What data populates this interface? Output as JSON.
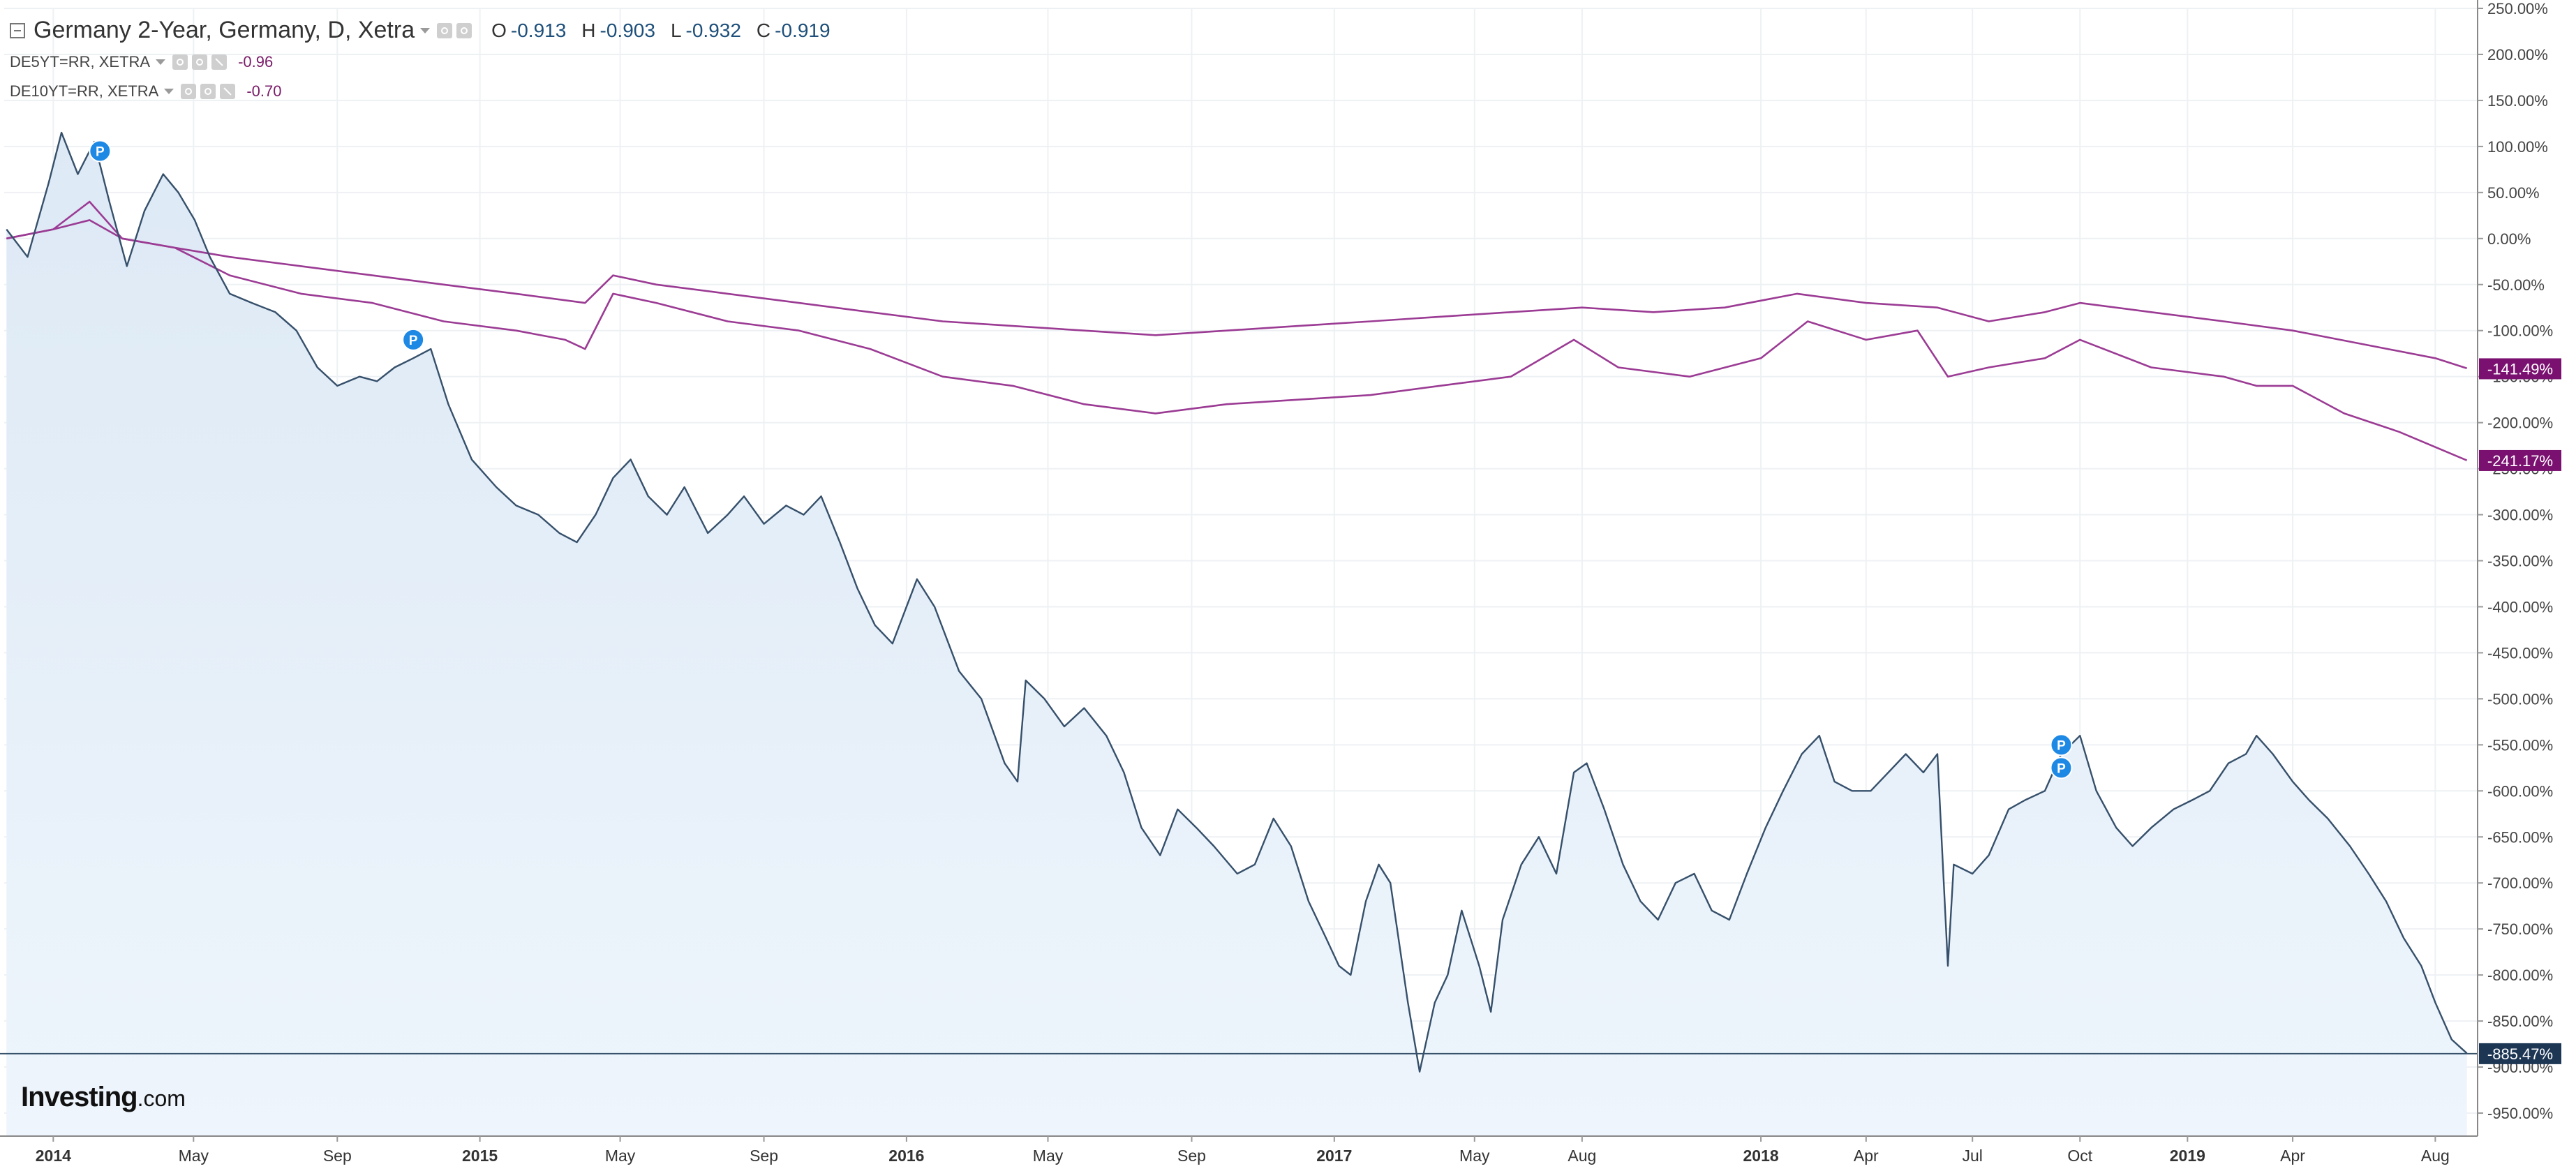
{
  "legend": {
    "main": {
      "title": "Germany 2-Year, Germany, D, Xetra",
      "open_label": "O",
      "open": "-0.913",
      "high_label": "H",
      "high": "-0.903",
      "low_label": "L",
      "low": "-0.932",
      "close_label": "C",
      "close": "-0.919"
    },
    "series_5y": {
      "title": "DE5YT=RR, XETRA",
      "value": "-0.96"
    },
    "series_10y": {
      "title": "DE10YT=RR, XETRA",
      "value": "-0.70"
    }
  },
  "logo": {
    "main": "Investing",
    "suffix": ".com"
  },
  "colors": {
    "main_line": "#36506b",
    "main_fill": "#dde9f5",
    "purple": "#9b3b94",
    "badge_main": "#1c3654",
    "badge_purple": "#7a1070",
    "marker": "#1e88e5",
    "grid": "#eef1f4"
  },
  "marker_glyph": "P",
  "chart_data": {
    "type": "line",
    "title": "Germany 2-Year, Germany, D, Xetra",
    "ylabel": "",
    "xlabel": "",
    "ylim": [
      -975,
      250
    ],
    "xlim": [
      "2013-11-20",
      "2019-09-05"
    ],
    "yticks": [
      "250.00%",
      "200.00%",
      "150.00%",
      "100.00%",
      "50.00%",
      "0.00%",
      "-50.00%",
      "-100.00%",
      "-150.00%",
      "-200.00%",
      "-250.00%",
      "-300.00%",
      "-350.00%",
      "-400.00%",
      "-450.00%",
      "-500.00%",
      "-550.00%",
      "-600.00%",
      "-650.00%",
      "-700.00%",
      "-750.00%",
      "-800.00%",
      "-850.00%",
      "-900.00%",
      "-950.00%"
    ],
    "ytick_values": [
      250,
      200,
      150,
      100,
      50,
      0,
      -50,
      -100,
      -150,
      -200,
      -250,
      -300,
      -350,
      -400,
      -450,
      -500,
      -550,
      -600,
      -650,
      -700,
      -750,
      -800,
      -850,
      -900,
      -950
    ],
    "xticks": [
      {
        "label": "2014",
        "date": "2014-01-01",
        "bold": true
      },
      {
        "label": "May",
        "date": "2014-05-01"
      },
      {
        "label": "Sep",
        "date": "2014-09-01"
      },
      {
        "label": "2015",
        "date": "2015-01-01",
        "bold": true
      },
      {
        "label": "May",
        "date": "2015-05-01"
      },
      {
        "label": "Sep",
        "date": "2015-09-01"
      },
      {
        "label": "2016",
        "date": "2016-01-01",
        "bold": true
      },
      {
        "label": "May",
        "date": "2016-05-01"
      },
      {
        "label": "Sep",
        "date": "2016-09-01"
      },
      {
        "label": "2017",
        "date": "2017-01-01",
        "bold": true
      },
      {
        "label": "May",
        "date": "2017-05-01"
      },
      {
        "label": "Aug",
        "date": "2017-08-01"
      },
      {
        "label": "2018",
        "date": "2018-01-01",
        "bold": true
      },
      {
        "label": "Apr",
        "date": "2018-04-01"
      },
      {
        "label": "Jul",
        "date": "2018-07-01"
      },
      {
        "label": "Oct",
        "date": "2018-10-01"
      },
      {
        "label": "2019",
        "date": "2019-01-01",
        "bold": true
      },
      {
        "label": "Apr",
        "date": "2019-04-01"
      },
      {
        "label": "Aug",
        "date": "2019-08-01"
      }
    ],
    "series": [
      {
        "name": "Germany 2-Year",
        "style": "area",
        "last_label": "-885.47%",
        "last_value": -885.47,
        "points": [
          [
            "2013-11-22",
            10
          ],
          [
            "2013-12-10",
            -20
          ],
          [
            "2013-12-28",
            60
          ],
          [
            "2014-01-08",
            115
          ],
          [
            "2014-01-22",
            70
          ],
          [
            "2014-02-05",
            105
          ],
          [
            "2014-02-18",
            40
          ],
          [
            "2014-03-05",
            -30
          ],
          [
            "2014-03-20",
            30
          ],
          [
            "2014-04-05",
            70
          ],
          [
            "2014-04-18",
            50
          ],
          [
            "2014-05-02",
            20
          ],
          [
            "2014-05-15",
            -20
          ],
          [
            "2014-06-01",
            -60
          ],
          [
            "2014-06-20",
            -70
          ],
          [
            "2014-07-10",
            -80
          ],
          [
            "2014-07-28",
            -100
          ],
          [
            "2014-08-15",
            -140
          ],
          [
            "2014-09-01",
            -160
          ],
          [
            "2014-09-20",
            -150
          ],
          [
            "2014-10-05",
            -155
          ],
          [
            "2014-10-20",
            -140
          ],
          [
            "2014-11-05",
            -130
          ],
          [
            "2014-11-20",
            -120
          ],
          [
            "2014-12-05",
            -180
          ],
          [
            "2014-12-25",
            -240
          ],
          [
            "2015-01-15",
            -270
          ],
          [
            "2015-02-01",
            -290
          ],
          [
            "2015-02-20",
            -300
          ],
          [
            "2015-03-10",
            -320
          ],
          [
            "2015-03-25",
            -330
          ],
          [
            "2015-04-10",
            -300
          ],
          [
            "2015-04-25",
            -260
          ],
          [
            "2015-05-10",
            -240
          ],
          [
            "2015-05-25",
            -280
          ],
          [
            "2015-06-10",
            -300
          ],
          [
            "2015-06-25",
            -270
          ],
          [
            "2015-07-15",
            -320
          ],
          [
            "2015-08-01",
            -300
          ],
          [
            "2015-08-15",
            -280
          ],
          [
            "2015-09-01",
            -310
          ],
          [
            "2015-09-20",
            -290
          ],
          [
            "2015-10-05",
            -300
          ],
          [
            "2015-10-20",
            -280
          ],
          [
            "2015-11-05",
            -330
          ],
          [
            "2015-11-20",
            -380
          ],
          [
            "2015-12-05",
            -420
          ],
          [
            "2015-12-20",
            -440
          ],
          [
            "2016-01-10",
            -370
          ],
          [
            "2016-01-25",
            -400
          ],
          [
            "2016-02-15",
            -470
          ],
          [
            "2016-03-05",
            -500
          ],
          [
            "2016-03-25",
            -570
          ],
          [
            "2016-04-05",
            -590
          ],
          [
            "2016-04-12",
            -480
          ],
          [
            "2016-04-28",
            -500
          ],
          [
            "2016-05-15",
            -530
          ],
          [
            "2016-06-01",
            -510
          ],
          [
            "2016-06-20",
            -540
          ],
          [
            "2016-07-05",
            -580
          ],
          [
            "2016-07-20",
            -640
          ],
          [
            "2016-08-05",
            -670
          ],
          [
            "2016-08-20",
            -620
          ],
          [
            "2016-09-05",
            -640
          ],
          [
            "2016-09-20",
            -660
          ],
          [
            "2016-10-10",
            -690
          ],
          [
            "2016-10-25",
            -680
          ],
          [
            "2016-11-10",
            -630
          ],
          [
            "2016-11-25",
            -660
          ],
          [
            "2016-12-10",
            -720
          ],
          [
            "2016-12-25",
            -760
          ],
          [
            "2017-01-05",
            -790
          ],
          [
            "2017-01-15",
            -800
          ],
          [
            "2017-01-28",
            -720
          ],
          [
            "2017-02-08",
            -680
          ],
          [
            "2017-02-18",
            -700
          ],
          [
            "2017-03-05",
            -830
          ],
          [
            "2017-03-15",
            -905
          ],
          [
            "2017-03-28",
            -830
          ],
          [
            "2017-04-08",
            -800
          ],
          [
            "2017-04-20",
            -730
          ],
          [
            "2017-05-05",
            -790
          ],
          [
            "2017-05-15",
            -840
          ],
          [
            "2017-05-25",
            -740
          ],
          [
            "2017-06-10",
            -680
          ],
          [
            "2017-06-25",
            -650
          ],
          [
            "2017-07-10",
            -690
          ],
          [
            "2017-07-25",
            -580
          ],
          [
            "2017-08-05",
            -570
          ],
          [
            "2017-08-20",
            -620
          ],
          [
            "2017-09-05",
            -680
          ],
          [
            "2017-09-20",
            -720
          ],
          [
            "2017-10-05",
            -740
          ],
          [
            "2017-10-20",
            -700
          ],
          [
            "2017-11-05",
            -690
          ],
          [
            "2017-11-20",
            -730
          ],
          [
            "2017-12-05",
            -740
          ],
          [
            "2017-12-20",
            -690
          ],
          [
            "2018-01-05",
            -640
          ],
          [
            "2018-01-20",
            -600
          ],
          [
            "2018-02-05",
            -560
          ],
          [
            "2018-02-20",
            -540
          ],
          [
            "2018-03-05",
            -590
          ],
          [
            "2018-03-20",
            -600
          ],
          [
            "2018-04-05",
            -600
          ],
          [
            "2018-04-20",
            -580
          ],
          [
            "2018-05-05",
            -560
          ],
          [
            "2018-05-20",
            -580
          ],
          [
            "2018-06-01",
            -560
          ],
          [
            "2018-06-10",
            -790
          ],
          [
            "2018-06-15",
            -680
          ],
          [
            "2018-07-01",
            -690
          ],
          [
            "2018-07-15",
            -670
          ],
          [
            "2018-08-01",
            -620
          ],
          [
            "2018-08-15",
            -610
          ],
          [
            "2018-09-01",
            -600
          ],
          [
            "2018-09-15",
            -560
          ],
          [
            "2018-10-01",
            -540
          ],
          [
            "2018-10-15",
            -600
          ],
          [
            "2018-11-01",
            -640
          ],
          [
            "2018-11-15",
            -660
          ],
          [
            "2018-12-01",
            -640
          ],
          [
            "2018-12-20",
            -620
          ],
          [
            "2019-01-05",
            -610
          ],
          [
            "2019-01-20",
            -600
          ],
          [
            "2019-02-05",
            -570
          ],
          [
            "2019-02-20",
            -560
          ],
          [
            "2019-03-01",
            -540
          ],
          [
            "2019-03-15",
            -560
          ],
          [
            "2019-04-01",
            -590
          ],
          [
            "2019-04-15",
            -610
          ],
          [
            "2019-05-01",
            -630
          ],
          [
            "2019-05-20",
            -660
          ],
          [
            "2019-06-05",
            -690
          ],
          [
            "2019-06-20",
            -720
          ],
          [
            "2019-07-05",
            -760
          ],
          [
            "2019-07-20",
            -790
          ],
          [
            "2019-08-01",
            -830
          ],
          [
            "2019-08-15",
            -870
          ],
          [
            "2019-08-28",
            -885
          ]
        ]
      },
      {
        "name": "DE5YT=RR, XETRA",
        "style": "line",
        "last_label": "-241.17%",
        "last_value": -241.17,
        "points": [
          [
            "2013-11-22",
            0
          ],
          [
            "2014-01-01",
            10
          ],
          [
            "2014-02-01",
            20
          ],
          [
            "2014-03-01",
            0
          ],
          [
            "2014-04-15",
            -10
          ],
          [
            "2014-06-01",
            -40
          ],
          [
            "2014-08-01",
            -60
          ],
          [
            "2014-10-01",
            -70
          ],
          [
            "2014-12-01",
            -90
          ],
          [
            "2015-02-01",
            -100
          ],
          [
            "2015-03-15",
            -110
          ],
          [
            "2015-04-01",
            -120
          ],
          [
            "2015-04-25",
            -60
          ],
          [
            "2015-06-01",
            -70
          ],
          [
            "2015-08-01",
            -90
          ],
          [
            "2015-10-01",
            -100
          ],
          [
            "2015-12-01",
            -120
          ],
          [
            "2016-02-01",
            -150
          ],
          [
            "2016-04-01",
            -160
          ],
          [
            "2016-06-01",
            -180
          ],
          [
            "2016-08-01",
            -190
          ],
          [
            "2016-10-01",
            -180
          ],
          [
            "2016-12-01",
            -175
          ],
          [
            "2017-02-01",
            -170
          ],
          [
            "2017-04-01",
            -160
          ],
          [
            "2017-06-01",
            -150
          ],
          [
            "2017-07-25",
            -110
          ],
          [
            "2017-09-01",
            -140
          ],
          [
            "2017-11-01",
            -150
          ],
          [
            "2018-01-01",
            -130
          ],
          [
            "2018-02-10",
            -90
          ],
          [
            "2018-04-01",
            -110
          ],
          [
            "2018-05-15",
            -100
          ],
          [
            "2018-06-10",
            -150
          ],
          [
            "2018-07-15",
            -140
          ],
          [
            "2018-09-01",
            -130
          ],
          [
            "2018-10-01",
            -110
          ],
          [
            "2018-12-01",
            -140
          ],
          [
            "2019-02-01",
            -150
          ],
          [
            "2019-03-01",
            -160
          ],
          [
            "2019-04-01",
            -160
          ],
          [
            "2019-05-15",
            -190
          ],
          [
            "2019-07-01",
            -210
          ],
          [
            "2019-08-28",
            -241
          ]
        ]
      },
      {
        "name": "DE10YT=RR, XETRA",
        "style": "line",
        "last_label": "-141.49%",
        "last_value": -141.49,
        "points": [
          [
            "2013-11-22",
            0
          ],
          [
            "2014-01-01",
            10
          ],
          [
            "2014-02-01",
            40
          ],
          [
            "2014-03-01",
            0
          ],
          [
            "2014-04-15",
            -10
          ],
          [
            "2014-06-01",
            -20
          ],
          [
            "2014-08-01",
            -30
          ],
          [
            "2014-10-01",
            -40
          ],
          [
            "2014-12-01",
            -50
          ],
          [
            "2015-02-01",
            -60
          ],
          [
            "2015-04-01",
            -70
          ],
          [
            "2015-04-25",
            -40
          ],
          [
            "2015-06-01",
            -50
          ],
          [
            "2015-08-01",
            -60
          ],
          [
            "2015-10-01",
            -70
          ],
          [
            "2015-12-01",
            -80
          ],
          [
            "2016-02-01",
            -90
          ],
          [
            "2016-04-01",
            -95
          ],
          [
            "2016-06-01",
            -100
          ],
          [
            "2016-08-01",
            -105
          ],
          [
            "2016-10-01",
            -100
          ],
          [
            "2016-12-01",
            -95
          ],
          [
            "2017-02-01",
            -90
          ],
          [
            "2017-04-01",
            -85
          ],
          [
            "2017-06-01",
            -80
          ],
          [
            "2017-08-01",
            -75
          ],
          [
            "2017-10-01",
            -80
          ],
          [
            "2017-12-01",
            -75
          ],
          [
            "2018-02-01",
            -60
          ],
          [
            "2018-04-01",
            -70
          ],
          [
            "2018-06-01",
            -75
          ],
          [
            "2018-07-15",
            -90
          ],
          [
            "2018-09-01",
            -80
          ],
          [
            "2018-10-01",
            -70
          ],
          [
            "2018-12-01",
            -80
          ],
          [
            "2019-02-01",
            -90
          ],
          [
            "2019-04-01",
            -100
          ],
          [
            "2019-06-01",
            -115
          ],
          [
            "2019-08-01",
            -130
          ],
          [
            "2019-08-28",
            -141
          ]
        ]
      }
    ],
    "event_markers": [
      {
        "date": "2014-02-10",
        "value": 95
      },
      {
        "date": "2014-11-05",
        "value": -110
      },
      {
        "date": "2018-09-15",
        "value": -550
      },
      {
        "date": "2018-09-15",
        "value": -575
      }
    ]
  }
}
